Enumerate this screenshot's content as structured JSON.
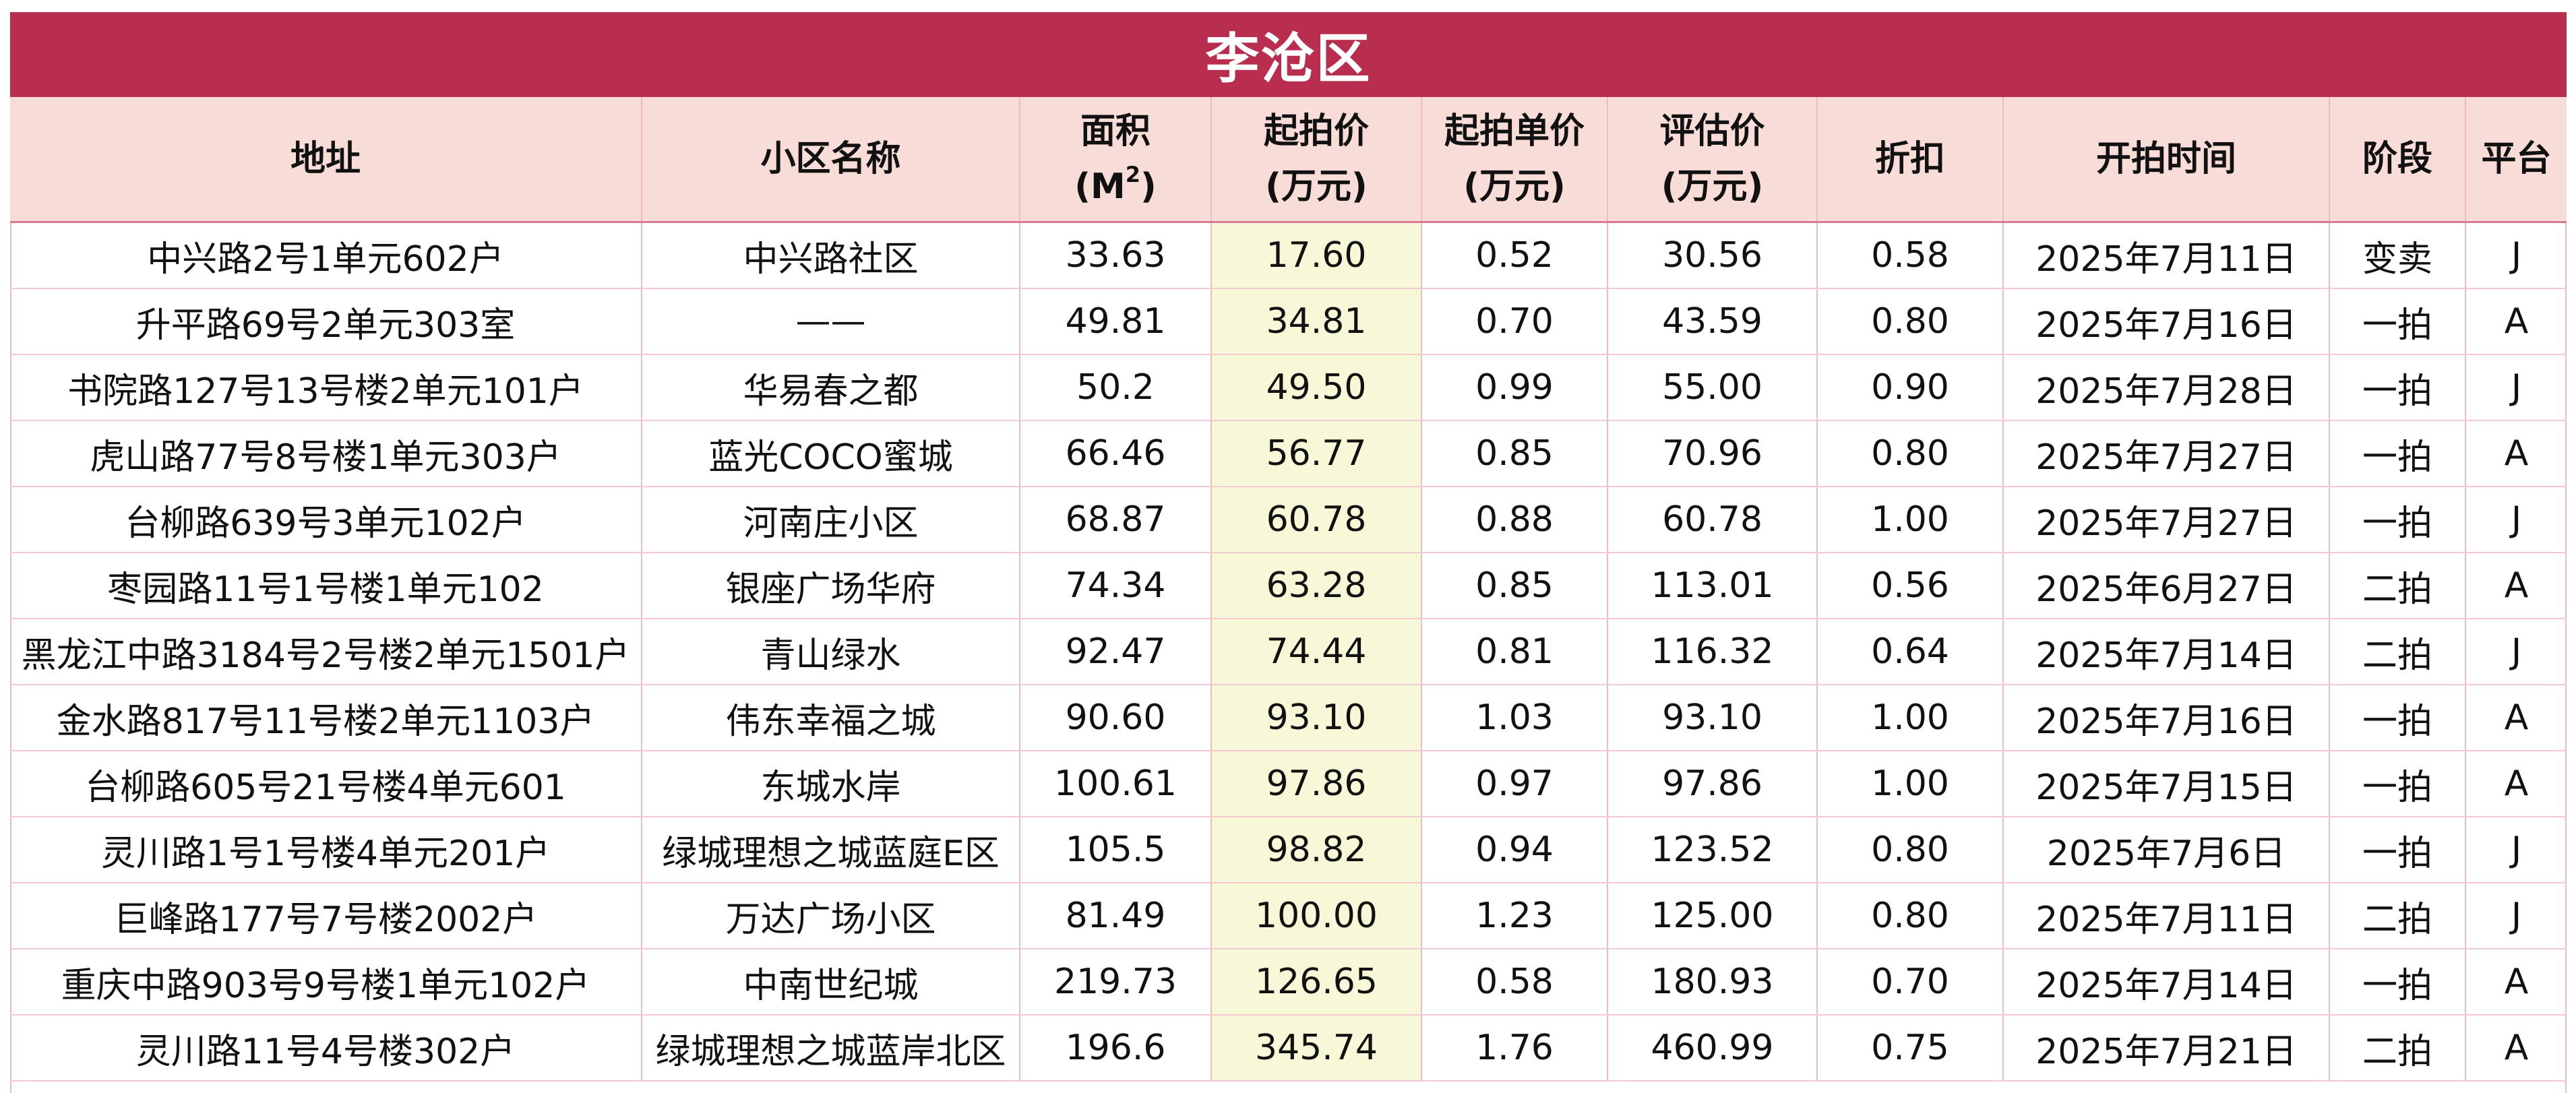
{
  "title": "李沧区",
  "headers": {
    "address": "地址",
    "community": "小区名称",
    "area_line1": "面积",
    "area_unit_open": "(M",
    "area_unit_sup": "2",
    "area_unit_close": ")",
    "start_price_line1": "起拍价",
    "start_price_line2": "(万元)",
    "unit_price_line1": "起拍单价",
    "unit_price_line2": "(万元)",
    "appraisal_line1": "评估价",
    "appraisal_line2": "(万元)",
    "discount": "折扣",
    "auction_date": "开拍时间",
    "stage": "阶段",
    "platform": "平台"
  },
  "rows": [
    {
      "address": "中兴路2号1单元602户",
      "community": "中兴路社区",
      "area": "33.63",
      "start_price": "17.60",
      "unit_price": "0.52",
      "appraisal": "30.56",
      "discount": "0.58",
      "date": "2025年7月11日",
      "stage": "变卖",
      "platform": "J"
    },
    {
      "address": "升平路69号2单元303室",
      "community": "——",
      "area": "49.81",
      "start_price": "34.81",
      "unit_price": "0.70",
      "appraisal": "43.59",
      "discount": "0.80",
      "date": "2025年7月16日",
      "stage": "一拍",
      "platform": "A"
    },
    {
      "address": "书院路127号13号楼2单元101户",
      "community": "华易春之都",
      "area": "50.2",
      "start_price": "49.50",
      "unit_price": "0.99",
      "appraisal": "55.00",
      "discount": "0.90",
      "date": "2025年7月28日",
      "stage": "一拍",
      "platform": "J"
    },
    {
      "address": "虎山路77号8号楼1单元303户",
      "community": "蓝光COCO蜜城",
      "area": "66.46",
      "start_price": "56.77",
      "unit_price": "0.85",
      "appraisal": "70.96",
      "discount": "0.80",
      "date": "2025年7月27日",
      "stage": "一拍",
      "platform": "A"
    },
    {
      "address": "台柳路639号3单元102户",
      "community": "河南庄小区",
      "area": "68.87",
      "start_price": "60.78",
      "unit_price": "0.88",
      "appraisal": "60.78",
      "discount": "1.00",
      "date": "2025年7月27日",
      "stage": "一拍",
      "platform": "J"
    },
    {
      "address": "枣园路11号1号楼1单元102",
      "community": "银座广场华府",
      "area": "74.34",
      "start_price": "63.28",
      "unit_price": "0.85",
      "appraisal": "113.01",
      "discount": "0.56",
      "date": "2025年6月27日",
      "stage": "二拍",
      "platform": "A"
    },
    {
      "address": "黑龙江中路3184号2号楼2单元1501户",
      "community": "青山绿水",
      "area": "92.47",
      "start_price": "74.44",
      "unit_price": "0.81",
      "appraisal": "116.32",
      "discount": "0.64",
      "date": "2025年7月14日",
      "stage": "二拍",
      "platform": "J"
    },
    {
      "address": "金水路817号11号楼2单元1103户",
      "community": "伟东幸福之城",
      "area": "90.60",
      "start_price": "93.10",
      "unit_price": "1.03",
      "appraisal": "93.10",
      "discount": "1.00",
      "date": "2025年7月16日",
      "stage": "一拍",
      "platform": "A"
    },
    {
      "address": "台柳路605号21号楼4单元601",
      "community": "东城水岸",
      "area": "100.61",
      "start_price": "97.86",
      "unit_price": "0.97",
      "appraisal": "97.86",
      "discount": "1.00",
      "date": "2025年7月15日",
      "stage": "一拍",
      "platform": "A"
    },
    {
      "address": "灵川路1号1号楼4单元201户",
      "community": "绿城理想之城蓝庭E区",
      "area": "105.5",
      "start_price": "98.82",
      "unit_price": "0.94",
      "appraisal": "123.52",
      "discount": "0.80",
      "date": "2025年7月6日",
      "stage": "一拍",
      "platform": "J"
    },
    {
      "address": "巨峰路177号7号楼2002户",
      "community": "万达广场小区",
      "area": "81.49",
      "start_price": "100.00",
      "unit_price": "1.23",
      "appraisal": "125.00",
      "discount": "0.80",
      "date": "2025年7月11日",
      "stage": "二拍",
      "platform": "J"
    },
    {
      "address": "重庆中路903号9号楼1单元102户",
      "community": "中南世纪城",
      "area": "219.73",
      "start_price": "126.65",
      "unit_price": "0.58",
      "appraisal": "180.93",
      "discount": "0.70",
      "date": "2025年7月14日",
      "stage": "一拍",
      "platform": "A"
    },
    {
      "address": "灵川路11号4号楼302户",
      "community": "绿城理想之城蓝岸北区",
      "area": "196.6",
      "start_price": "345.74",
      "unit_price": "1.76",
      "appraisal": "460.99",
      "discount": "0.75",
      "date": "2025年7月21日",
      "stage": "二拍",
      "platform": "A"
    }
  ]
}
